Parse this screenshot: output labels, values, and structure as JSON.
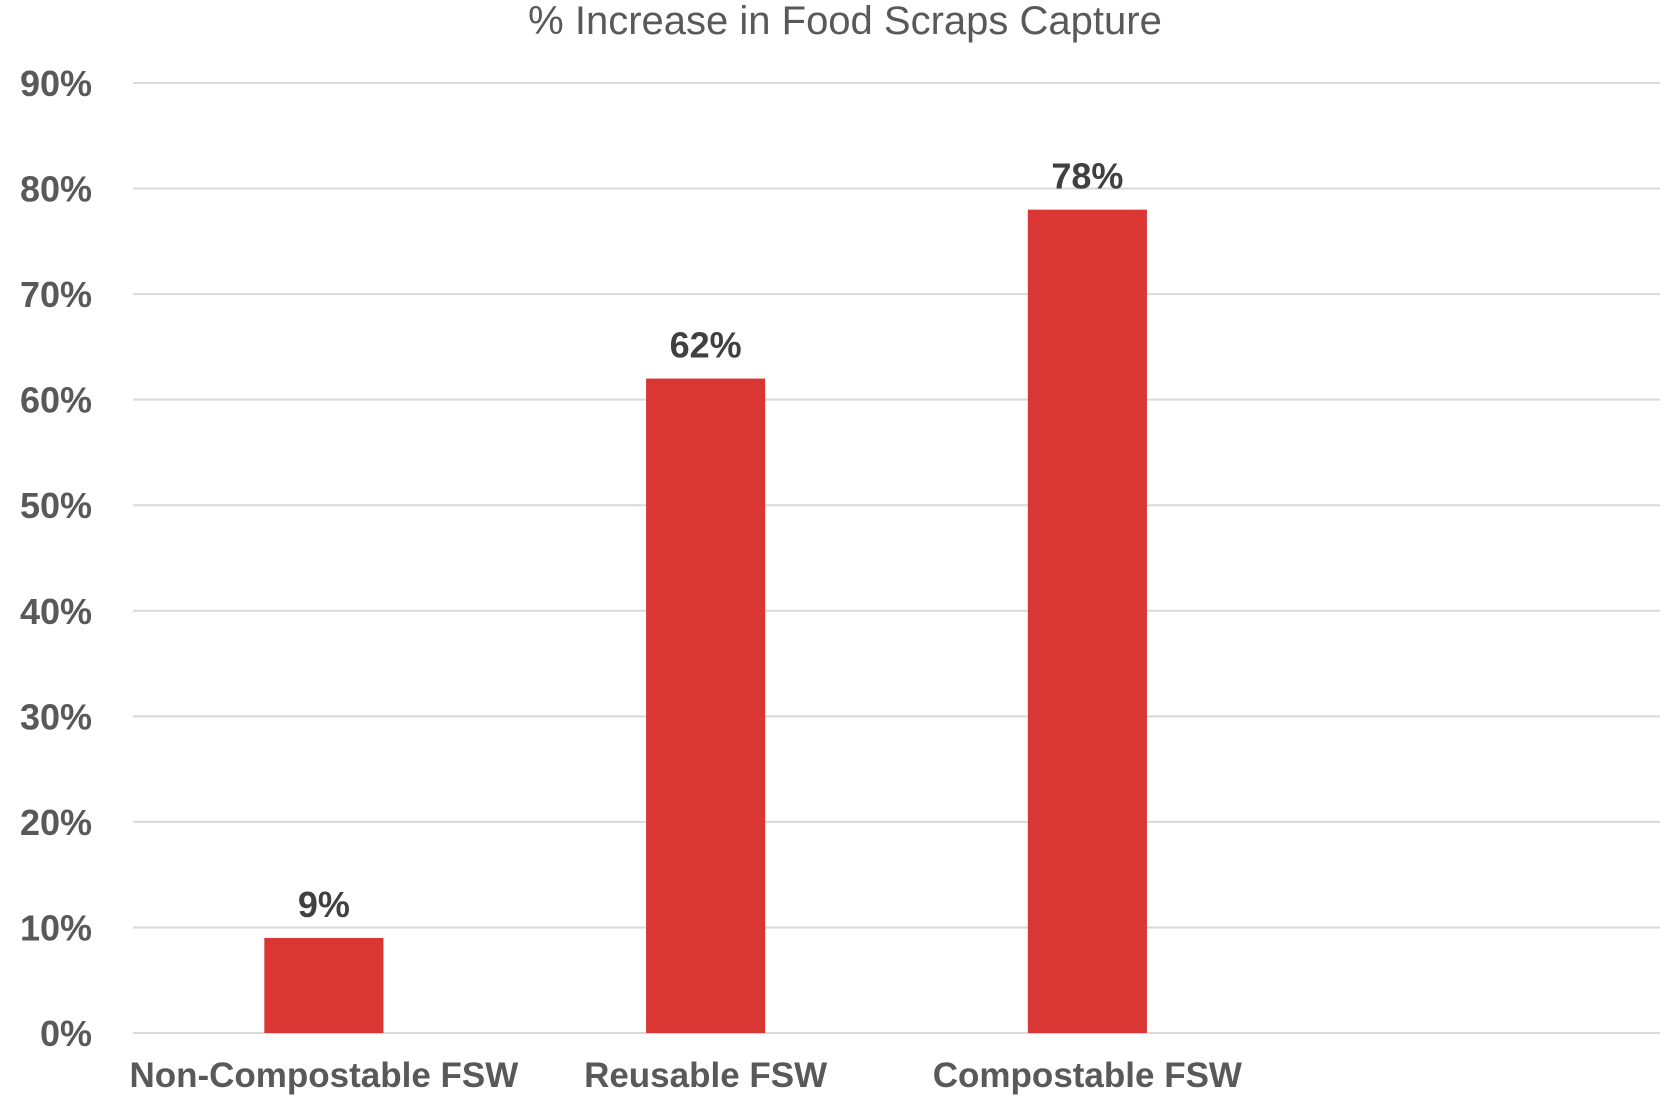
{
  "chart_data": {
    "type": "bar",
    "title": "% Increase in Food Scraps Capture",
    "categories": [
      "Non-Compostable FSW",
      "Reusable FSW",
      "Compostable FSW",
      ""
    ],
    "values": [
      9,
      62,
      78,
      null
    ],
    "data_labels": [
      "9%",
      "62%",
      "78%",
      ""
    ],
    "ylim": [
      0,
      90
    ],
    "yticks": [
      0,
      10,
      20,
      30,
      40,
      50,
      60,
      70,
      80,
      90
    ],
    "ytick_labels": [
      "0%",
      "10%",
      "20%",
      "30%",
      "40%",
      "50%",
      "60%",
      "70%",
      "80%",
      "90%"
    ],
    "xlabel": "",
    "ylabel": "",
    "grid": true,
    "legend": "none",
    "bar_color": "#d93634",
    "grid_color": "#d9d9d9",
    "text_color": "#595959"
  }
}
